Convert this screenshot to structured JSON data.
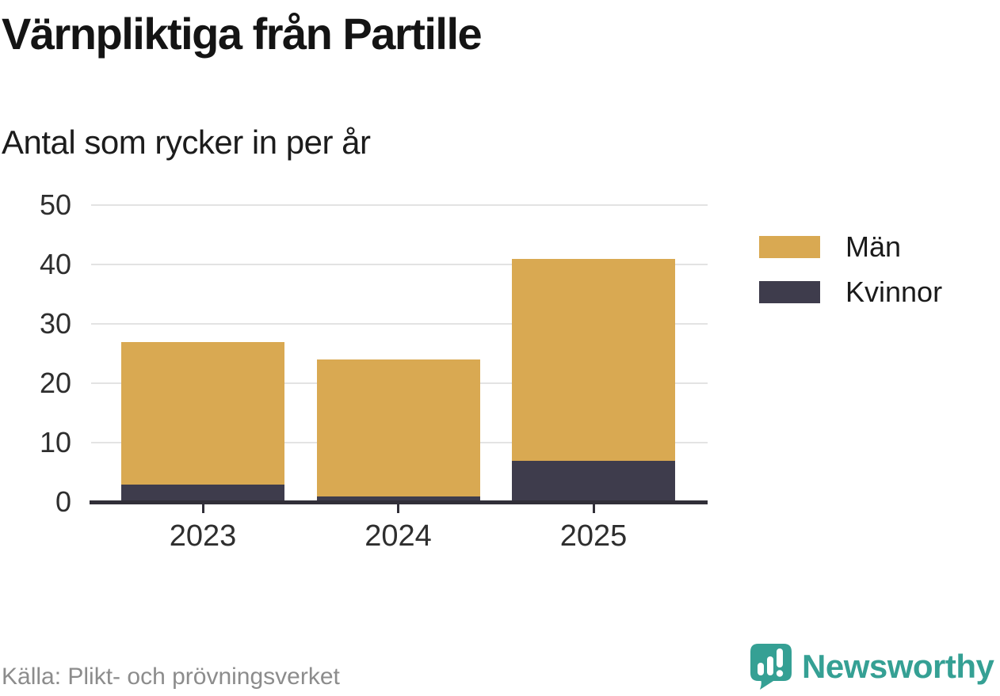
{
  "header": {
    "title": "Värnpliktiga från Partille",
    "subtitle": "Antal som rycker in per år"
  },
  "chart_data": {
    "type": "bar",
    "stacked": true,
    "title": "Värnpliktiga från Partille",
    "subtitle": "Antal som rycker in per år",
    "categories": [
      "2023",
      "2024",
      "2025"
    ],
    "series": [
      {
        "name": "Män",
        "color": "#d9a952",
        "values": [
          24,
          23,
          34
        ]
      },
      {
        "name": "Kvinnor",
        "color": "#3e3c4c",
        "values": [
          3,
          1,
          7
        ]
      }
    ],
    "totals": [
      27,
      24,
      41
    ],
    "xlabel": "",
    "ylabel": "",
    "ylim": [
      0,
      50
    ],
    "yticks": [
      0,
      10,
      20,
      30,
      40,
      50
    ],
    "grid": true,
    "legend_position": "right",
    "stack_order_bottom_to_top": [
      "Kvinnor",
      "Män"
    ]
  },
  "footer": {
    "source": "Källa: Plikt- och prövningsverket",
    "brand": "Newsworthy",
    "brand_color": "#35a094"
  },
  "icons": {
    "logo": "newsworthy-speech-bubble-bar-chart-icon"
  }
}
